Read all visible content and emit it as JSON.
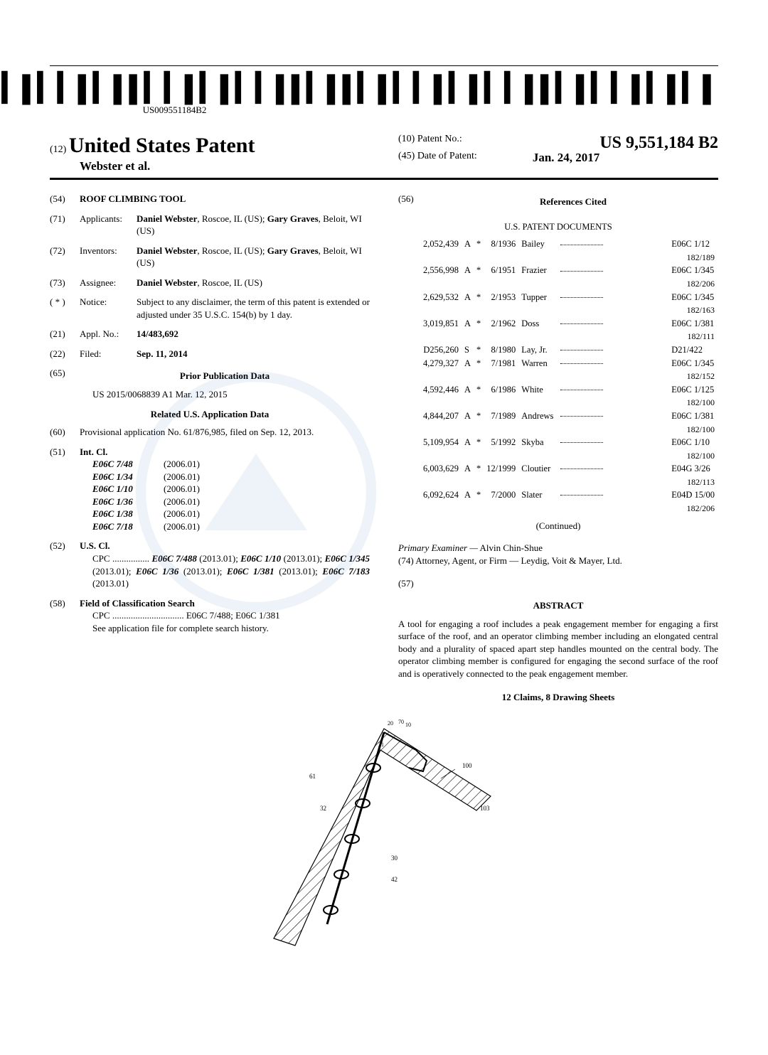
{
  "barcode_text": "US009551184B2",
  "header": {
    "prefix": "(12)",
    "title": "United States Patent",
    "authors": "Webster et al.",
    "patent_no_label": "(10) Patent No.:",
    "patent_no": "US 9,551,184 B2",
    "date_label": "(45) Date of Patent:",
    "date": "Jan. 24, 2017"
  },
  "f54": {
    "code": "(54)",
    "val": "ROOF CLIMBING TOOL"
  },
  "f71": {
    "code": "(71)",
    "label": "Applicants:",
    "val": "Daniel Webster, Roscoe, IL (US); Gary Graves, Beloit, WI (US)"
  },
  "f72": {
    "code": "(72)",
    "label": "Inventors:",
    "val": "Daniel Webster, Roscoe, IL (US); Gary Graves, Beloit, WI (US)"
  },
  "f73": {
    "code": "(73)",
    "label": "Assignee:",
    "val": "Daniel Webster, Roscoe, IL (US)"
  },
  "fnotice": {
    "code": "( * )",
    "label": "Notice:",
    "val": "Subject to any disclaimer, the term of this patent is extended or adjusted under 35 U.S.C. 154(b) by 1 day."
  },
  "f21": {
    "code": "(21)",
    "label": "Appl. No.:",
    "val": "14/483,692"
  },
  "f22": {
    "code": "(22)",
    "label": "Filed:",
    "val": "Sep. 11, 2014"
  },
  "f65": {
    "code": "(65)",
    "title": "Prior Publication Data",
    "val": "US 2015/0068839 A1    Mar. 12, 2015"
  },
  "related_title": "Related U.S. Application Data",
  "f60": {
    "code": "(60)",
    "val": "Provisional application No. 61/876,985, filed on Sep. 12, 2013."
  },
  "f51": {
    "code": "(51)",
    "label": "Int. Cl."
  },
  "intcl": [
    {
      "c": "E06C 7/48",
      "y": "(2006.01)"
    },
    {
      "c": "E06C 1/34",
      "y": "(2006.01)"
    },
    {
      "c": "E06C 1/10",
      "y": "(2006.01)"
    },
    {
      "c": "E06C 1/36",
      "y": "(2006.01)"
    },
    {
      "c": "E06C 1/38",
      "y": "(2006.01)"
    },
    {
      "c": "E06C 7/18",
      "y": "(2006.01)"
    }
  ],
  "f52": {
    "code": "(52)",
    "label": "U.S. Cl.",
    "val": "CPC ................ E06C 7/488 (2013.01); E06C 1/10 (2013.01); E06C 1/345 (2013.01); E06C 1/36 (2013.01); E06C 1/381 (2013.01); E06C 7/183 (2013.01)"
  },
  "f58": {
    "code": "(58)",
    "label": "Field of Classification Search",
    "val": "CPC ............................... E06C 7/488; E06C 1/381\nSee application file for complete search history."
  },
  "f56": {
    "code": "(56)",
    "title": "References Cited",
    "subtitle": "U.S. PATENT DOCUMENTS"
  },
  "refs": [
    {
      "n": "2,052,439",
      "t": "A",
      "s": "*",
      "d": "8/1936",
      "a": "Bailey",
      "c": "E06C 1/12",
      "sub": "182/189"
    },
    {
      "n": "2,556,998",
      "t": "A",
      "s": "*",
      "d": "6/1951",
      "a": "Frazier",
      "c": "E06C 1/345",
      "sub": "182/206"
    },
    {
      "n": "2,629,532",
      "t": "A",
      "s": "*",
      "d": "2/1953",
      "a": "Tupper",
      "c": "E06C 1/345",
      "sub": "182/163"
    },
    {
      "n": "3,019,851",
      "t": "A",
      "s": "*",
      "d": "2/1962",
      "a": "Doss",
      "c": "E06C 1/381",
      "sub": "182/111"
    },
    {
      "n": "D256,260",
      "t": "S",
      "s": "*",
      "d": "8/1980",
      "a": "Lay, Jr.",
      "c": "D21/422",
      "sub": ""
    },
    {
      "n": "4,279,327",
      "t": "A",
      "s": "*",
      "d": "7/1981",
      "a": "Warren",
      "c": "E06C 1/345",
      "sub": "182/152"
    },
    {
      "n": "4,592,446",
      "t": "A",
      "s": "*",
      "d": "6/1986",
      "a": "White",
      "c": "E06C 1/125",
      "sub": "182/100"
    },
    {
      "n": "4,844,207",
      "t": "A",
      "s": "*",
      "d": "7/1989",
      "a": "Andrews",
      "c": "E06C 1/381",
      "sub": "182/100"
    },
    {
      "n": "5,109,954",
      "t": "A",
      "s": "*",
      "d": "5/1992",
      "a": "Skyba",
      "c": "E06C 1/10",
      "sub": "182/100"
    },
    {
      "n": "6,003,629",
      "t": "A",
      "s": "*",
      "d": "12/1999",
      "a": "Cloutier",
      "c": "E04G 3/26",
      "sub": "182/113"
    },
    {
      "n": "6,092,624",
      "t": "A",
      "s": "*",
      "d": "7/2000",
      "a": "Slater",
      "c": "E04D 15/00",
      "sub": "182/206"
    }
  ],
  "continued": "(Continued)",
  "examiner_label": "Primary Examiner —",
  "examiner": "Alvin Chin-Shue",
  "attorney_label": "(74) Attorney, Agent, or Firm —",
  "attorney": "Leydig, Voit & Mayer, Ltd.",
  "f57": {
    "code": "(57)",
    "title": "ABSTRACT"
  },
  "abstract": "A tool for engaging a roof includes a peak engagement member for engaging a first surface of the roof, and an operator climbing member including an elongated central body and a plurality of spaced apart step handles mounted on the central body. The operator climbing member is configured for engaging the second surface of the roof and is operatively connected to the peak engagement member.",
  "claims": "12 Claims, 8 Drawing Sheets"
}
